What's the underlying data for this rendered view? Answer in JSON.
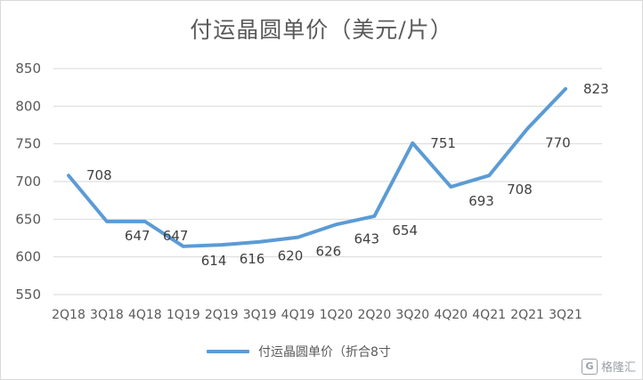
{
  "chart_data": {
    "type": "line",
    "title": "付运晶圆单价（美元/片）",
    "categories": [
      "2Q18",
      "3Q18",
      "4Q18",
      "1Q19",
      "2Q19",
      "3Q19",
      "4Q19",
      "1Q20",
      "2Q20",
      "3Q20",
      "4Q20",
      "4Q21",
      "2Q21",
      "3Q21"
    ],
    "series": [
      {
        "name": "付运晶圆单价（折合8寸",
        "values": [
          708,
          647,
          647,
          614,
          616,
          620,
          626,
          643,
          654,
          751,
          693,
          708,
          770,
          823
        ],
        "color": "#5b9bd5"
      }
    ],
    "ylim": [
      550,
      850
    ],
    "yticks": [
      550,
      600,
      650,
      700,
      750,
      800,
      850
    ],
    "grid": true,
    "legend": "bottom"
  },
  "watermark": {
    "icon": "G",
    "text": "格隆汇"
  }
}
